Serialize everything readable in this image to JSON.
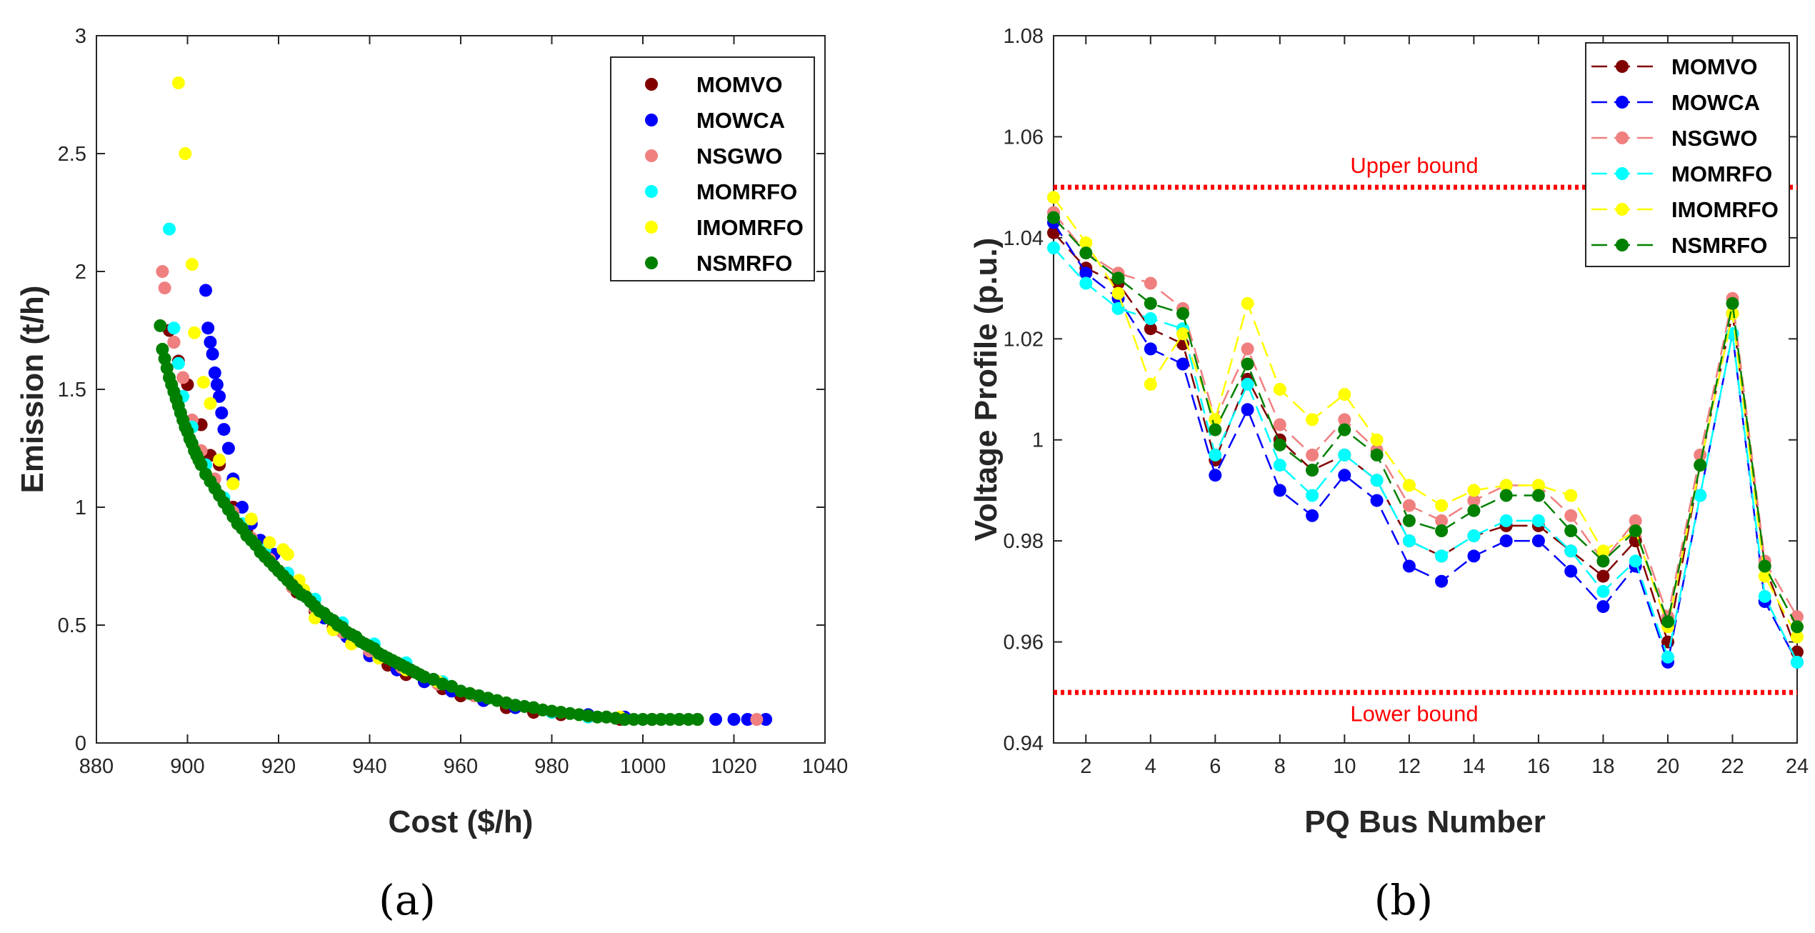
{
  "colors": {
    "MOMVO": "#800000",
    "MOWCA": "#0000ff",
    "NSGWO": "#f08080",
    "MOMRFO": "#00ffff",
    "IMOMRFO": "#ffff00",
    "NSMRFO": "#008000",
    "bound": "#ff0000"
  },
  "panel_labels": [
    "(a)",
    "(b)"
  ],
  "chart_data": [
    {
      "type": "scatter",
      "xlabel": "Cost ($/h)",
      "ylabel": "Emission (t/h)",
      "xlim": [
        880,
        1040
      ],
      "ylim": [
        0,
        3
      ],
      "xticks": [
        "880",
        "900",
        "920",
        "940",
        "960",
        "980",
        "1000",
        "1020",
        "1040"
      ],
      "yticks": [
        "0",
        "0.5",
        "1",
        "1.5",
        "2",
        "2.5",
        "3"
      ],
      "legend": [
        "MOMVO",
        "MOWCA",
        "NSGWO",
        "MOMRFO",
        "IMOMRFO",
        "NSMRFO"
      ],
      "series": [
        {
          "name": "MOMVO",
          "x": [
            896,
            897,
            898,
            900,
            903,
            905,
            907,
            910,
            913,
            916,
            920,
            924,
            928,
            932,
            936,
            940,
            944,
            948,
            952,
            956,
            960,
            965,
            970,
            976,
            982,
            988,
            995,
            1002,
            1008
          ],
          "y": [
            1.75,
            1.7,
            1.62,
            1.52,
            1.35,
            1.22,
            1.18,
            1.0,
            0.9,
            0.82,
            0.73,
            0.64,
            0.56,
            0.49,
            0.43,
            0.38,
            0.33,
            0.29,
            0.26,
            0.23,
            0.2,
            0.18,
            0.15,
            0.13,
            0.12,
            0.11,
            0.1,
            0.1,
            0.1
          ]
        },
        {
          "name": "MOWCA",
          "x": [
            904,
            904.5,
            905,
            905.5,
            906,
            906.5,
            907,
            907.5,
            908,
            909,
            910,
            912,
            914,
            916,
            919,
            922,
            926,
            930,
            935,
            940,
            946,
            952,
            958,
            965,
            972,
            980,
            988,
            996,
            1004,
            1012,
            1016,
            1020,
            1023,
            1027
          ],
          "y": [
            1.92,
            1.76,
            1.7,
            1.65,
            1.57,
            1.52,
            1.47,
            1.4,
            1.33,
            1.25,
            1.12,
            1.0,
            0.93,
            0.86,
            0.8,
            0.72,
            0.62,
            0.53,
            0.45,
            0.37,
            0.31,
            0.26,
            0.22,
            0.18,
            0.15,
            0.13,
            0.12,
            0.11,
            0.1,
            0.1,
            0.1,
            0.1,
            0.1,
            0.1
          ]
        },
        {
          "name": "NSGWO",
          "x": [
            894.5,
            895,
            897,
            899,
            901,
            903,
            906,
            910,
            914,
            918,
            923,
            928,
            934,
            940,
            947,
            955,
            963,
            972,
            982,
            992,
            1002,
            1012,
            1025
          ],
          "y": [
            2.0,
            1.93,
            1.7,
            1.55,
            1.37,
            1.24,
            1.12,
            0.98,
            0.87,
            0.78,
            0.66,
            0.57,
            0.47,
            0.39,
            0.32,
            0.25,
            0.2,
            0.16,
            0.13,
            0.11,
            0.1,
            0.1,
            0.1
          ]
        },
        {
          "name": "MOMRFO",
          "x": [
            896,
            897,
            898,
            899,
            901,
            904,
            908,
            912,
            917,
            922,
            928,
            934,
            941,
            948,
            956,
            964,
            972,
            980,
            988,
            996,
            1004
          ],
          "y": [
            2.18,
            1.76,
            1.61,
            1.47,
            1.34,
            1.18,
            1.04,
            0.93,
            0.82,
            0.72,
            0.61,
            0.51,
            0.42,
            0.34,
            0.26,
            0.2,
            0.16,
            0.13,
            0.11,
            0.1,
            0.1
          ]
        },
        {
          "name": "IMOMRFO",
          "x": [
            898,
            899.5,
            901,
            901.5,
            903.5,
            905,
            907,
            910,
            914,
            918,
            921,
            922,
            924.5,
            925.5,
            928,
            932,
            936,
            942,
            948,
            955,
            962,
            970,
            978,
            986,
            995,
            1004,
            1012
          ],
          "y": [
            2.8,
            2.5,
            2.03,
            1.74,
            1.53,
            1.44,
            1.2,
            1.1,
            0.95,
            0.85,
            0.82,
            0.8,
            0.69,
            0.65,
            0.53,
            0.48,
            0.42,
            0.36,
            0.31,
            0.26,
            0.21,
            0.17,
            0.14,
            0.12,
            0.11,
            0.1,
            0.1
          ]
        },
        {
          "name": "NSMRFO",
          "x": [
            894,
            894.5,
            895,
            895.5,
            896,
            896.5,
            897,
            897.5,
            898,
            898.5,
            899,
            899.5,
            900,
            900.5,
            901,
            901.5,
            902,
            902.5,
            903,
            904,
            905,
            906,
            907,
            908,
            909,
            910,
            911,
            912,
            913,
            914,
            915,
            916,
            917,
            918,
            919,
            920,
            921,
            922,
            923,
            924,
            925,
            926,
            927,
            928,
            929,
            930,
            931,
            932,
            933,
            934,
            935,
            936,
            937,
            938,
            939,
            940,
            941,
            942,
            943,
            944,
            945,
            946,
            947,
            948,
            949,
            950,
            951,
            952,
            954,
            956,
            958,
            960,
            962,
            964,
            966,
            968,
            970,
            972,
            974,
            976,
            978,
            980,
            982,
            984,
            986,
            988,
            990,
            992,
            994,
            996,
            998,
            1000,
            1002,
            1004,
            1006,
            1008,
            1010,
            1012
          ],
          "y": [
            1.77,
            1.67,
            1.63,
            1.59,
            1.55,
            1.52,
            1.49,
            1.46,
            1.43,
            1.4,
            1.37,
            1.34,
            1.32,
            1.29,
            1.27,
            1.24,
            1.22,
            1.2,
            1.18,
            1.14,
            1.11,
            1.08,
            1.05,
            1.02,
            0.99,
            0.96,
            0.93,
            0.91,
            0.88,
            0.86,
            0.84,
            0.81,
            0.79,
            0.77,
            0.75,
            0.73,
            0.71,
            0.69,
            0.67,
            0.65,
            0.63,
            0.62,
            0.6,
            0.58,
            0.56,
            0.55,
            0.53,
            0.52,
            0.5,
            0.49,
            0.47,
            0.46,
            0.45,
            0.43,
            0.42,
            0.41,
            0.4,
            0.38,
            0.37,
            0.36,
            0.35,
            0.34,
            0.33,
            0.32,
            0.31,
            0.3,
            0.29,
            0.28,
            0.27,
            0.25,
            0.24,
            0.22,
            0.21,
            0.2,
            0.19,
            0.18,
            0.17,
            0.16,
            0.155,
            0.15,
            0.14,
            0.135,
            0.13,
            0.125,
            0.12,
            0.115,
            0.11,
            0.11,
            0.105,
            0.1,
            0.1,
            0.1,
            0.1,
            0.1,
            0.1,
            0.1,
            0.1,
            0.1
          ]
        }
      ]
    },
    {
      "type": "line",
      "xlabel": "PQ Bus Number",
      "ylabel": "Voltage Profile (p.u.)",
      "xlim": [
        1,
        24
      ],
      "ylim": [
        0.94,
        1.08
      ],
      "xticks": [
        "2",
        "4",
        "6",
        "8",
        "10",
        "12",
        "14",
        "16",
        "18",
        "20",
        "22",
        "24"
      ],
      "yticks": [
        "0.94",
        "0.96",
        "0.98",
        "1",
        "1.02",
        "1.04",
        "1.06",
        "1.08"
      ],
      "legend": [
        "MOMVO",
        "MOWCA",
        "NSGWO",
        "MOMRFO",
        "IMOMRFO",
        "NSMRFO"
      ],
      "x": [
        1,
        2,
        3,
        4,
        5,
        6,
        7,
        8,
        9,
        10,
        11,
        12,
        13,
        14,
        15,
        16,
        17,
        18,
        19,
        20,
        21,
        22,
        23,
        24
      ],
      "upper_bound": {
        "value": 1.05,
        "label": "Upper bound"
      },
      "lower_bound": {
        "value": 0.95,
        "label": "Lower bound"
      },
      "series": [
        {
          "name": "MOMVO",
          "values": [
            1.041,
            1.034,
            1.031,
            1.022,
            1.019,
            0.996,
            1.012,
            1.0,
            0.994,
            0.997,
            0.992,
            0.98,
            0.977,
            0.981,
            0.983,
            0.983,
            0.978,
            0.973,
            0.98,
            0.96,
            0.995,
            1.025,
            0.975,
            0.958
          ]
        },
        {
          "name": "MOWCA",
          "values": [
            1.043,
            1.033,
            1.028,
            1.018,
            1.015,
            0.993,
            1.006,
            0.99,
            0.985,
            0.993,
            0.988,
            0.975,
            0.972,
            0.977,
            0.98,
            0.98,
            0.974,
            0.967,
            0.975,
            0.956,
            0.989,
            1.021,
            0.968,
            0.956
          ]
        },
        {
          "name": "NSGWO",
          "values": [
            1.045,
            1.037,
            1.033,
            1.031,
            1.026,
            1.004,
            1.018,
            1.003,
            0.997,
            1.004,
            0.998,
            0.987,
            0.984,
            0.988,
            0.991,
            0.991,
            0.985,
            0.976,
            0.984,
            0.965,
            0.997,
            1.028,
            0.976,
            0.965
          ]
        },
        {
          "name": "MOMRFO",
          "values": [
            1.038,
            1.031,
            1.026,
            1.024,
            1.022,
            0.997,
            1.011,
            0.995,
            0.989,
            0.997,
            0.992,
            0.98,
            0.977,
            0.981,
            0.984,
            0.984,
            0.978,
            0.97,
            0.976,
            0.957,
            0.989,
            1.021,
            0.969,
            0.956
          ]
        },
        {
          "name": "IMOMRFO",
          "values": [
            1.048,
            1.039,
            1.029,
            1.011,
            1.021,
            1.004,
            1.027,
            1.01,
            1.004,
            1.009,
            1.0,
            0.991,
            0.987,
            0.99,
            0.991,
            0.991,
            0.989,
            0.978,
            0.982,
            0.963,
            0.995,
            1.025,
            0.973,
            0.961
          ]
        },
        {
          "name": "NSMRFO",
          "values": [
            1.044,
            1.037,
            1.032,
            1.027,
            1.025,
            1.002,
            1.015,
            0.999,
            0.994,
            1.002,
            0.997,
            0.984,
            0.982,
            0.986,
            0.989,
            0.989,
            0.982,
            0.976,
            0.982,
            0.964,
            0.995,
            1.027,
            0.975,
            0.963
          ]
        }
      ]
    }
  ]
}
